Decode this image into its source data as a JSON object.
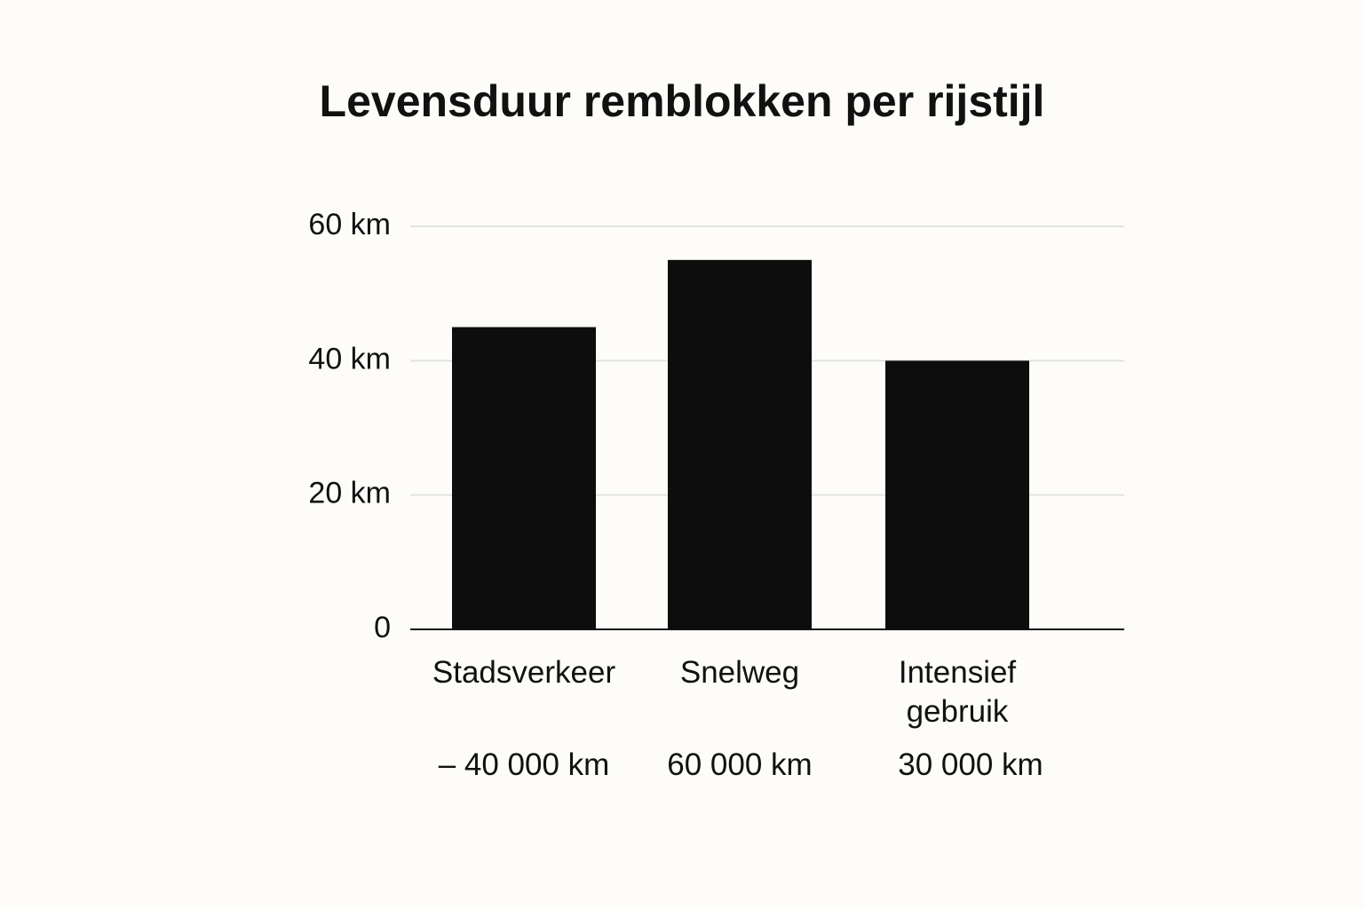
{
  "chart_data": {
    "type": "bar",
    "title": "Levensduur remblokken per rijstijl",
    "categories": [
      "Stadsverkeer",
      "Snelweg",
      "Intensief gebruik"
    ],
    "values": [
      45,
      55,
      40
    ],
    "color": "#0d0d0d",
    "annotations": [
      "– 40 000 km",
      "60 000 km",
      "30 000 km"
    ],
    "ylim": [
      0,
      60
    ],
    "yticks": [
      0,
      {
        "value": 20,
        "label": "20 km"
      },
      {
        "value": 40,
        "label": "40 km"
      },
      {
        "value": 60,
        "label": "60 km"
      }
    ],
    "grid": true
  }
}
